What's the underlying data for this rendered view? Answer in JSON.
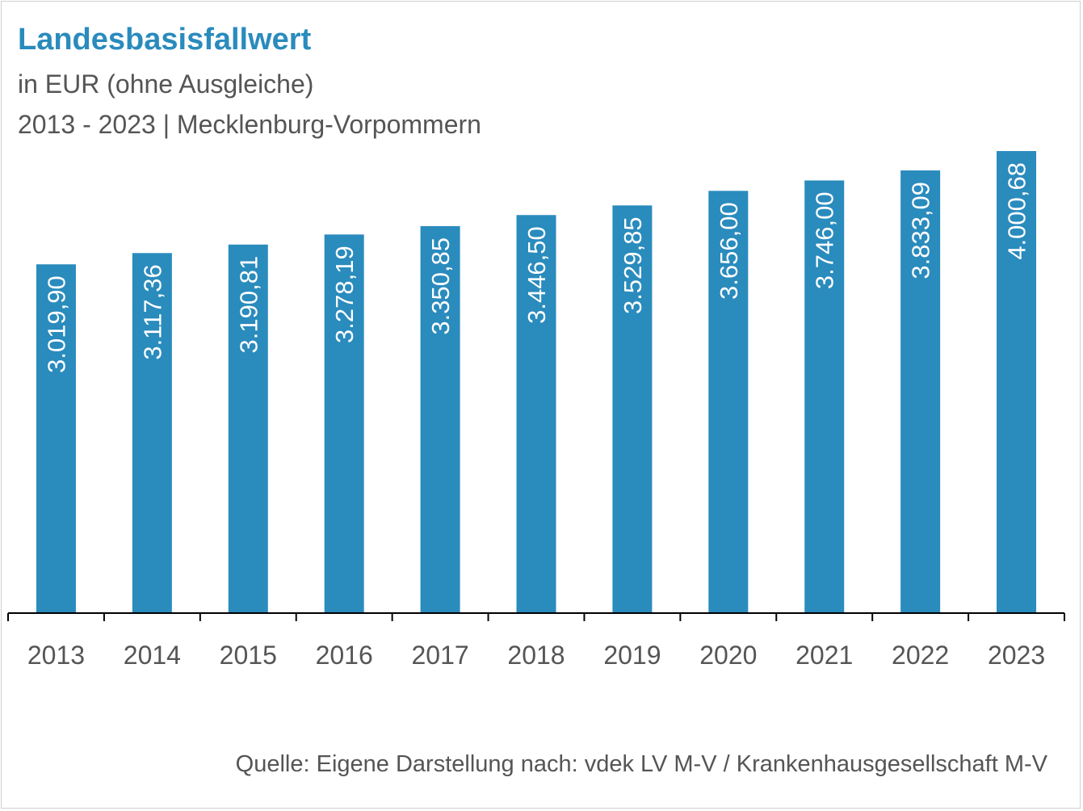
{
  "title": "Landesbasisfallwert",
  "subtitle_1": "in EUR (ohne Ausgleiche)",
  "subtitle_2": "2013 - 2023 | Mecklenburg-Vorpommern",
  "source": "Quelle: Eigene Darstellung nach: vdek LV M-V / Krankenhausgesellschaft M-V",
  "colors": {
    "bar": "#2a8bbd",
    "title": "#2a8bbd",
    "text": "#555555",
    "axis": "#000000",
    "bar_label": "#ffffff"
  },
  "chart_data": {
    "type": "bar",
    "title": "Landesbasisfallwert",
    "xlabel": "",
    "ylabel": "",
    "categories": [
      "2013",
      "2014",
      "2015",
      "2016",
      "2017",
      "2018",
      "2019",
      "2020",
      "2021",
      "2022",
      "2023"
    ],
    "values": [
      3019.9,
      3117.36,
      3190.81,
      3278.19,
      3350.85,
      3446.5,
      3529.85,
      3656.0,
      3746.0,
      3833.09,
      4000.68
    ],
    "value_labels": [
      "3.019,90",
      "3.117,36",
      "3.190,81",
      "3.278,19",
      "3.350,85",
      "3.446,50",
      "3.529,85",
      "3.656,00",
      "3.746,00",
      "3.833,09",
      "4.000,68"
    ],
    "ylim": [
      0,
      4000.68
    ],
    "grid": false,
    "legend": "none"
  }
}
